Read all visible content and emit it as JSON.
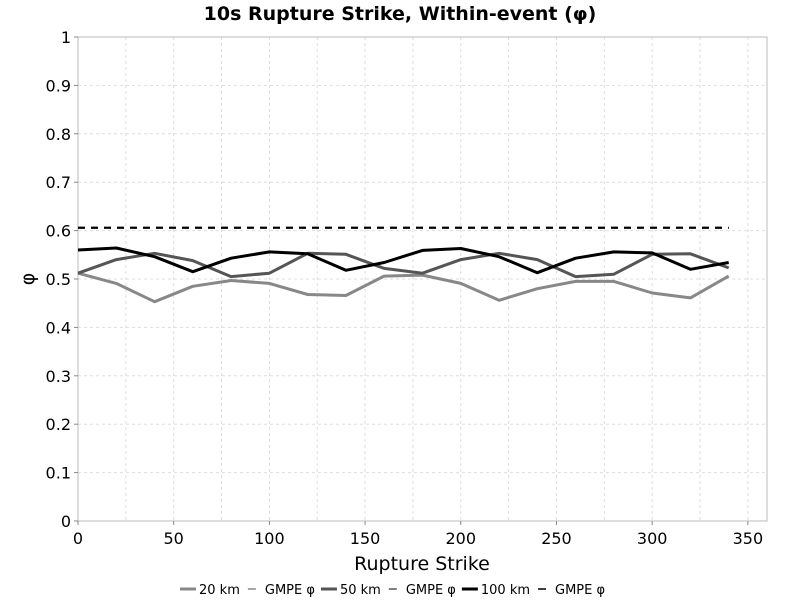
{
  "chart_data": {
    "type": "line",
    "title": "10s Rupture Strike, Within-event (φ)",
    "xlabel": "Rupture Strike",
    "ylabel": "φ",
    "xlim": [
      0,
      360
    ],
    "ylim": [
      0,
      1
    ],
    "x_ticks": [
      0,
      50,
      100,
      150,
      200,
      250,
      300,
      350
    ],
    "y_ticks": [
      0,
      0.1,
      0.2,
      0.3,
      0.4,
      0.5,
      0.6,
      0.7,
      0.8,
      0.9,
      1
    ],
    "y_tick_labels": [
      "0",
      "0.1",
      "0.2",
      "0.3",
      "0.4",
      "0.5",
      "0.6",
      "0.7",
      "0.8",
      "0.9",
      "1"
    ],
    "grid": true,
    "legend_position": "bottom",
    "x": [
      0,
      20,
      40,
      60,
      80,
      100,
      120,
      140,
      160,
      180,
      200,
      220,
      240,
      260,
      280,
      300,
      320,
      340
    ],
    "series": [
      {
        "name": "20 km",
        "color": "#888888",
        "dash": "solid",
        "values": [
          0.512,
          0.491,
          0.453,
          0.485,
          0.497,
          0.491,
          0.468,
          0.466,
          0.506,
          0.508,
          0.491,
          0.456,
          0.48,
          0.495,
          0.495,
          0.471,
          0.461,
          0.506
        ]
      },
      {
        "name": "GMPE φ",
        "color": "#888888",
        "dash": "dashed",
        "values": [
          0.606,
          0.606,
          0.606,
          0.606,
          0.606,
          0.606,
          0.606,
          0.606,
          0.606,
          0.606,
          0.606,
          0.606,
          0.606,
          0.606,
          0.606,
          0.606,
          0.606,
          0.606
        ]
      },
      {
        "name": "50 km",
        "color": "#555555",
        "dash": "solid",
        "values": [
          0.512,
          0.54,
          0.553,
          0.538,
          0.505,
          0.512,
          0.553,
          0.551,
          0.522,
          0.512,
          0.54,
          0.553,
          0.54,
          0.505,
          0.51,
          0.551,
          0.552,
          0.523
        ]
      },
      {
        "name": "GMPE φ",
        "color": "#555555",
        "dash": "dashed",
        "values": [
          0.606,
          0.606,
          0.606,
          0.606,
          0.606,
          0.606,
          0.606,
          0.606,
          0.606,
          0.606,
          0.606,
          0.606,
          0.606,
          0.606,
          0.606,
          0.606,
          0.606,
          0.606
        ]
      },
      {
        "name": "100 km",
        "color": "#000000",
        "dash": "solid",
        "values": [
          0.56,
          0.564,
          0.546,
          0.515,
          0.543,
          0.556,
          0.552,
          0.518,
          0.534,
          0.559,
          0.563,
          0.546,
          0.513,
          0.543,
          0.556,
          0.554,
          0.52,
          0.534
        ]
      },
      {
        "name": "GMPE φ",
        "color": "#000000",
        "dash": "dashed",
        "values": [
          0.606,
          0.606,
          0.606,
          0.606,
          0.606,
          0.606,
          0.606,
          0.606,
          0.606,
          0.606,
          0.606,
          0.606,
          0.606,
          0.606,
          0.606,
          0.606,
          0.606,
          0.606
        ]
      }
    ]
  }
}
